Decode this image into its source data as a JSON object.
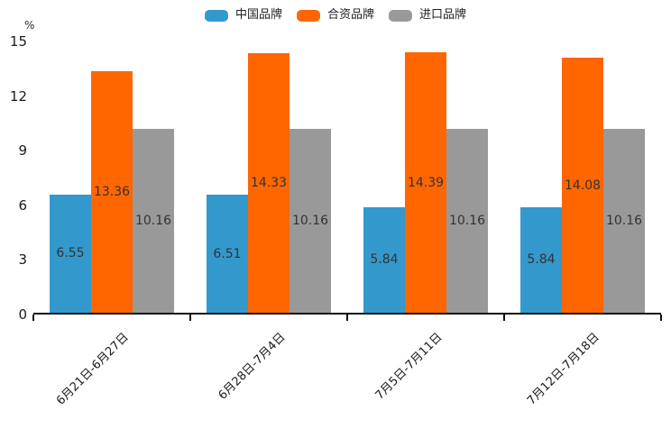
{
  "chart_data": {
    "type": "bar",
    "unit_label": "%",
    "categories": [
      "6月21日-6月27日",
      "6月28日-7月4日",
      "7月5日-7月11日",
      "7月12日-7月18日"
    ],
    "series": [
      {
        "name": "中国品牌",
        "color": "#3399CC",
        "values": [
          6.55,
          6.51,
          5.84,
          5.84
        ]
      },
      {
        "name": "合资品牌",
        "color": "#FF6600",
        "values": [
          13.36,
          14.33,
          14.39,
          14.08
        ]
      },
      {
        "name": "进口品牌",
        "color": "#999999",
        "values": [
          10.16,
          10.16,
          10.16,
          10.16
        ]
      }
    ],
    "yticks": [
      0,
      3,
      6,
      9,
      12,
      15
    ],
    "ylim": [
      0,
      15
    ],
    "legend_position": "top",
    "grid": false,
    "value_labels_visible": true,
    "value_label_decimals": 2
  },
  "colors": {
    "axis": "#111111",
    "tick_text": "#1a1a1a",
    "value_label_text": "#333333",
    "background": "#ffffff"
  }
}
